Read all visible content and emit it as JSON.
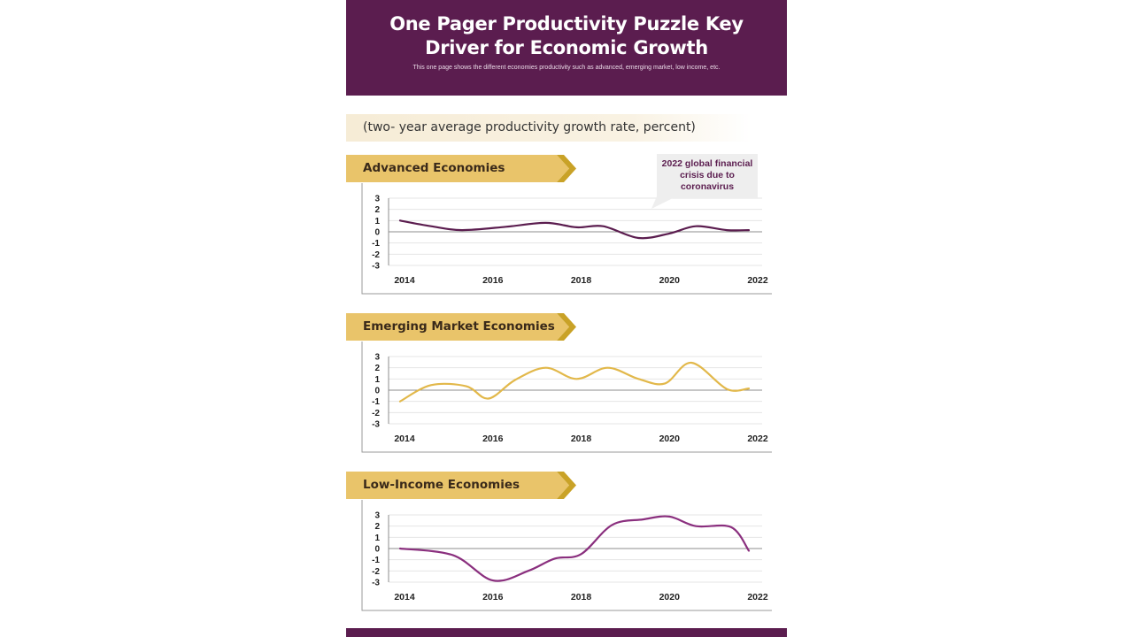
{
  "header": {
    "title": "One Pager Productivity Puzzle Key Driver for Economic Growth",
    "description": "This one page shows the different economies productivity such as advanced, emerging market, low income, etc."
  },
  "subtitle": "(two- year average productivity growth rate, percent)",
  "callout": "2022 global financial crisis due to coronavirus",
  "colors": {
    "header_bg": "#5b1d4f",
    "ribbon": "#e9c46a",
    "ribbon_tip": "#c9a227",
    "advanced_line": "#5b1d4f",
    "emerging_line": "#e2b84a",
    "low_income_line": "#8a2f7e"
  },
  "chart_data": [
    {
      "type": "line",
      "title": "Advanced Economies",
      "xticks": [
        "2014",
        "2016",
        "2018",
        "2020",
        "2022"
      ],
      "yticks": [
        "3",
        "2",
        "1",
        "0",
        "-1",
        "-2",
        "-3"
      ],
      "ylim": [
        -3,
        3
      ],
      "xlim": [
        2013.6,
        2022
      ],
      "grid": true,
      "series": [
        {
          "x": [
            2013.9,
            2014.6,
            2015.3,
            2016.3,
            2017.2,
            2017.9,
            2018.5,
            2019.3,
            2020.0,
            2020.6,
            2021.3,
            2021.8
          ],
          "y": [
            1.0,
            0.5,
            0.15,
            0.45,
            0.8,
            0.4,
            0.5,
            -0.55,
            -0.15,
            0.5,
            0.15,
            0.15
          ]
        }
      ]
    },
    {
      "type": "line",
      "title": "Emerging Market Economies",
      "xticks": [
        "2014",
        "2016",
        "2018",
        "2020",
        "2022"
      ],
      "yticks": [
        "3",
        "2",
        "1",
        "0",
        "-1",
        "-2",
        "-3"
      ],
      "ylim": [
        -3,
        3
      ],
      "xlim": [
        2013.6,
        2022
      ],
      "grid": true,
      "series": [
        {
          "x": [
            2013.9,
            2014.6,
            2015.4,
            2015.9,
            2016.5,
            2017.2,
            2017.9,
            2018.6,
            2019.3,
            2019.9,
            2020.5,
            2021.3,
            2021.8
          ],
          "y": [
            -1.0,
            0.45,
            0.35,
            -0.75,
            0.9,
            2.0,
            1.0,
            2.0,
            1.0,
            0.6,
            2.45,
            0.1,
            0.15
          ]
        }
      ]
    },
    {
      "type": "line",
      "title": "Low-Income Economies",
      "xticks": [
        "2014",
        "2016",
        "2018",
        "2020",
        "2022"
      ],
      "yticks": [
        "3",
        "2",
        "1",
        "0",
        "-1",
        "-2",
        "-3"
      ],
      "ylim": [
        -3,
        3
      ],
      "xlim": [
        2013.6,
        2022
      ],
      "grid": true,
      "series": [
        {
          "x": [
            2013.9,
            2015.1,
            2016.0,
            2016.8,
            2017.4,
            2018.0,
            2018.7,
            2019.4,
            2020.0,
            2020.6,
            2021.4,
            2021.8
          ],
          "y": [
            0.0,
            -0.6,
            -2.85,
            -2.0,
            -0.9,
            -0.5,
            2.1,
            2.6,
            2.85,
            2.0,
            1.9,
            -0.2
          ]
        }
      ]
    }
  ]
}
